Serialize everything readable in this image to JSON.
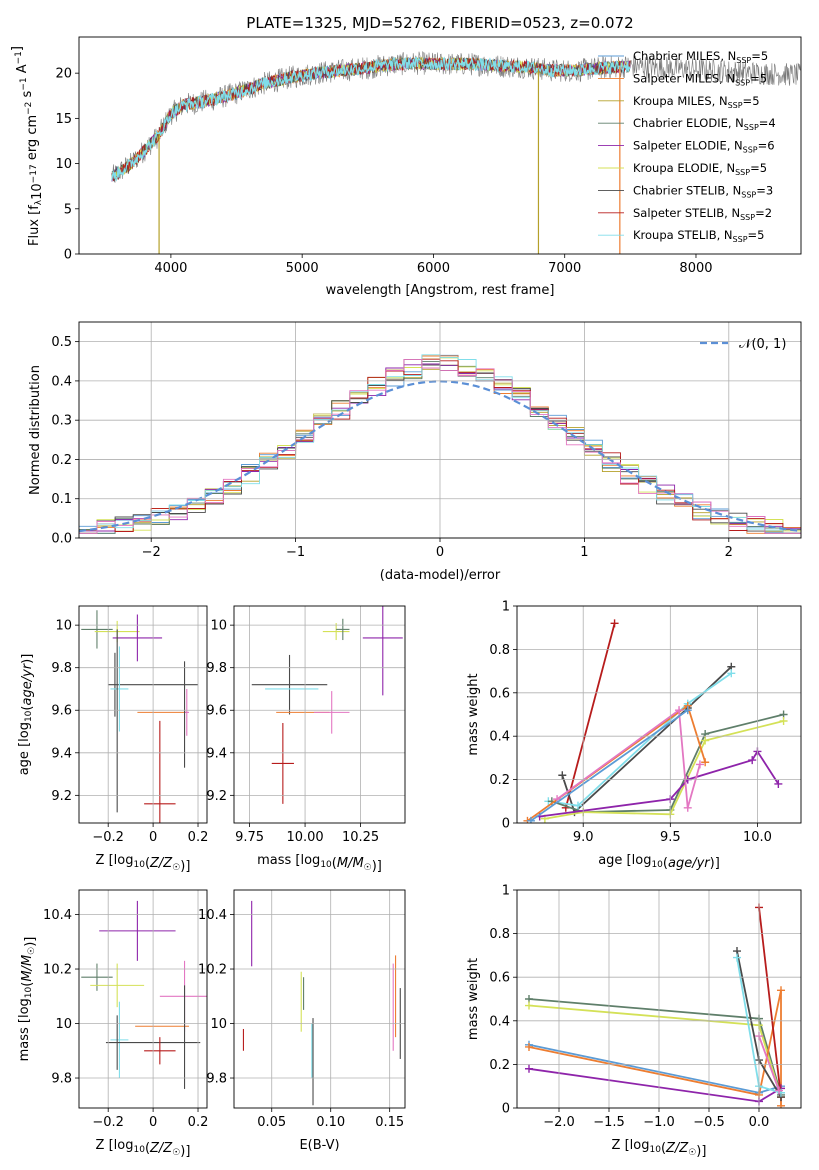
{
  "figure": {
    "title": "PLATE=1325, MJD=52762, FIBERID=0523, z=0.072"
  },
  "colors": {
    "Chabrier MILES": "#5b9bd5",
    "Salpeter MILES": "#ed7d31",
    "Kroupa MILES": "#b5a02a",
    "Chabrier ELODIE": "#5f7f6a",
    "Salpeter ELODIE": "#8e24aa",
    "Kroupa ELODIE": "#d4e157",
    "Chabrier STELIB": "#4a4a4a",
    "Salpeter STELIB": "#b71c1c",
    "Kroupa STELIB": "#80deea",
    "Pink": "#e377c2",
    "Gaussian": "#5b8fd6"
  },
  "chart_data": [
    {
      "id": "spectrum",
      "type": "line",
      "xlabel": "wavelength [Angstrom, rest frame]",
      "ylabel": "Flux [f_λ 10^-17 erg cm^-2 s^-1 A^-1]",
      "xlim": [
        3300,
        8800
      ],
      "ylim": [
        0,
        24
      ],
      "xticks": [
        4000,
        5000,
        6000,
        7000,
        8000
      ],
      "yticks": [
        0,
        5,
        10,
        15,
        20
      ],
      "grid": false,
      "legend_position": "top-right",
      "legend": [
        {
          "name": "Chabrier MILES",
          "nssp": "5"
        },
        {
          "name": "Salpeter MILES",
          "nssp": "5"
        },
        {
          "name": "Kroupa MILES",
          "nssp": "5"
        },
        {
          "name": "Chabrier ELODIE",
          "nssp": "4"
        },
        {
          "name": "Salpeter ELODIE",
          "nssp": "6"
        },
        {
          "name": "Kroupa ELODIE",
          "nssp": "5"
        },
        {
          "name": "Chabrier STELIB",
          "nssp": "3"
        },
        {
          "name": "Salpeter STELIB",
          "nssp": "2"
        },
        {
          "name": "Kroupa STELIB",
          "nssp": "5"
        }
      ],
      "continuum": {
        "x": [
          3550,
          3700,
          3900,
          4000,
          4100,
          4300,
          4500,
          4700,
          4900,
          5100,
          5300,
          5500,
          5700,
          5900,
          6100,
          6300,
          6500,
          6700,
          6900,
          7100,
          7300,
          7500
        ],
        "y": [
          8.5,
          10.0,
          13.0,
          15.5,
          16.5,
          17.0,
          17.8,
          18.8,
          19.5,
          20.0,
          20.3,
          20.6,
          21.0,
          21.1,
          21.0,
          21.0,
          20.8,
          20.7,
          20.3,
          20.3,
          20.6,
          20.8
        ]
      },
      "data_x_range": [
        3550,
        8800
      ],
      "model_x_range": [
        3550,
        7500
      ],
      "dips": [
        {
          "series": "Kroupa MILES",
          "x": 3910,
          "y": 0
        },
        {
          "series": "Kroupa MILES",
          "x": 6800,
          "y": 0
        },
        {
          "series": "Salpeter MILES",
          "x": 7420,
          "y": 0
        }
      ]
    },
    {
      "id": "residuals",
      "type": "histogram",
      "xlabel": "(data-model)/error",
      "ylabel": "Normed distribution",
      "xlim": [
        -2.5,
        2.5
      ],
      "ylim": [
        0,
        0.55
      ],
      "xticks": [
        -2,
        -1,
        0,
        1,
        2
      ],
      "yticks": [
        0.0,
        0.1,
        0.2,
        0.3,
        0.4,
        0.5
      ],
      "grid": true,
      "legend_position": "top-right",
      "reference_curve": {
        "label": "𝒩(0, 1)",
        "mean": 0,
        "sigma": 1
      },
      "bin_width": 0.125,
      "n_histograms": 10
    },
    {
      "id": "age_vs_Z",
      "type": "errorbar",
      "xlabel": "Z [log10(Z/Z☉)]",
      "ylabel": "age [log10(age/yr)]",
      "xlim": [
        -0.33,
        0.24
      ],
      "ylim": [
        9.07,
        10.09
      ],
      "xticks": [
        -0.2,
        0.0,
        0.2
      ],
      "yticks": [
        9.2,
        9.4,
        9.6,
        9.8,
        10.0
      ],
      "grid": true,
      "points": [
        {
          "series": "Chabrier ELODIE",
          "x": -0.25,
          "y": 9.98,
          "xerr": 0.07,
          "yerr": 0.09
        },
        {
          "series": "Kroupa ELODIE",
          "x": -0.16,
          "y": 9.97,
          "xerr": 0.1,
          "yerr": 0.05
        },
        {
          "series": "Salpeter ELODIE",
          "x": -0.07,
          "y": 9.94,
          "xerr": 0.11,
          "yerr": 0.11
        },
        {
          "series": "Chabrier STELIB",
          "x": 0.0,
          "y": 9.72,
          "xerr": 0.2,
          "yerr": 0.0
        },
        {
          "series": "Chabrier STELIB",
          "x": -0.17,
          "y": 9.72,
          "xerr": 0.0,
          "yerr": 0.15
        },
        {
          "series": "Kroupa STELIB",
          "x": -0.15,
          "y": 9.7,
          "xerr": 0.04,
          "yerr": 0.2
        },
        {
          "series": "Salpeter MILES",
          "x": 0.04,
          "y": 9.59,
          "xerr": 0.11,
          "yerr": 0.0
        },
        {
          "series": "Pink",
          "x": 0.15,
          "y": 9.59,
          "xerr": 0.01,
          "yerr": 0.11
        },
        {
          "series": "Chabrier STELIB",
          "x": -0.16,
          "y": 9.55,
          "xerr": 0.0,
          "yerr": 0.43
        },
        {
          "series": "Chabrier STELIB",
          "x": 0.14,
          "y": 9.58,
          "xerr": 0.0,
          "yerr": 0.25
        },
        {
          "series": "Salpeter STELIB",
          "x": 0.03,
          "y": 9.16,
          "xerr": 0.07,
          "yerr": 0.39
        }
      ]
    },
    {
      "id": "age_vs_mass",
      "type": "errorbar",
      "xlabel": "mass [log10(M/M☉)]",
      "ylabel": "",
      "xlim": [
        9.68,
        10.45
      ],
      "ylim": [
        9.07,
        10.09
      ],
      "xticks": [
        9.75,
        10.0,
        10.25
      ],
      "tick_labels": [
        "9.75",
        "10.00",
        "10.25"
      ],
      "yticks": [
        9.2,
        9.4,
        9.6,
        9.8,
        10.0
      ],
      "grid": true,
      "points": [
        {
          "series": "Salpeter ELODIE",
          "x": 10.35,
          "y": 9.94,
          "xerr": 0.09,
          "yerr": 0.27
        },
        {
          "series": "Kroupa ELODIE",
          "x": 10.14,
          "y": 9.97,
          "xerr": 0.06,
          "yerr": 0.04
        },
        {
          "series": "Chabrier ELODIE",
          "x": 10.17,
          "y": 9.98,
          "xerr": 0.03,
          "yerr": 0.05
        },
        {
          "series": "Chabrier STELIB",
          "x": 9.93,
          "y": 9.72,
          "xerr": 0.17,
          "yerr": 0.14
        },
        {
          "series": "Kroupa STELIB",
          "x": 9.94,
          "y": 9.7,
          "xerr": 0.12,
          "yerr": 0.0
        },
        {
          "series": "Salpeter MILES",
          "x": 9.99,
          "y": 9.59,
          "xerr": 0.12,
          "yerr": 0.0
        },
        {
          "series": "Pink",
          "x": 10.12,
          "y": 9.59,
          "xerr": 0.08,
          "yerr": 0.1
        },
        {
          "series": "Salpeter STELIB",
          "x": 9.9,
          "y": 9.35,
          "xerr": 0.05,
          "yerr": 0.19
        }
      ]
    },
    {
      "id": "weight_vs_age",
      "type": "line",
      "xlabel": "age [log10(age/yr)]",
      "ylabel": "mass weight",
      "xlim": [
        8.62,
        10.25
      ],
      "ylim": [
        0.0,
        1.0
      ],
      "xticks": [
        9.0,
        9.5,
        10.0
      ],
      "tick_labels": [
        "9.0",
        "9.5",
        "10.0"
      ],
      "yticks": [
        0.0,
        0.2,
        0.4,
        0.6,
        0.8,
        1.0
      ],
      "grid": true,
      "series": [
        {
          "name": "Salpeter STELIB",
          "x": [
            8.9,
            9.18
          ],
          "y": [
            0.07,
            0.92
          ]
        },
        {
          "name": "Chabrier STELIB",
          "x": [
            8.88,
            8.95,
            9.6,
            9.85
          ],
          "y": [
            0.22,
            0.05,
            0.53,
            0.72
          ]
        },
        {
          "name": "Kroupa STELIB",
          "x": [
            8.8,
            8.97,
            9.6,
            9.85
          ],
          "y": [
            0.1,
            0.08,
            0.55,
            0.69
          ]
        },
        {
          "name": "Chabrier ELODIE",
          "x": [
            8.82,
            9.0,
            9.5,
            9.7,
            10.15
          ],
          "y": [
            0.1,
            0.05,
            0.06,
            0.41,
            0.5
          ]
        },
        {
          "name": "Kroupa ELODIE",
          "x": [
            8.78,
            9.0,
            9.5,
            9.7,
            10.15
          ],
          "y": [
            0.02,
            0.05,
            0.04,
            0.38,
            0.47
          ]
        },
        {
          "name": "Salpeter ELODIE",
          "x": [
            8.75,
            9.5,
            9.6,
            9.97,
            10.0,
            10.12
          ],
          "y": [
            0.03,
            0.11,
            0.2,
            0.29,
            0.33,
            0.18
          ]
        },
        {
          "name": "Salpeter MILES",
          "x": [
            8.68,
            9.6,
            9.7
          ],
          "y": [
            0.01,
            0.54,
            0.28
          ]
        },
        {
          "name": "Pink",
          "x": [
            8.85,
            9.55,
            9.6,
            9.67
          ],
          "y": [
            0.11,
            0.52,
            0.07,
            0.27
          ]
        },
        {
          "name": "Chabrier MILES",
          "x": [
            8.7,
            9.6
          ],
          "y": [
            0.01,
            0.52
          ]
        }
      ]
    },
    {
      "id": "mass_vs_Z",
      "type": "errorbar",
      "xlabel": "Z [log10(Z/Z☉)]",
      "ylabel": "mass [log10(M/M☉)]",
      "xlim": [
        -0.33,
        0.24
      ],
      "ylim": [
        9.69,
        10.49
      ],
      "xticks": [
        -0.2,
        0.0,
        0.2
      ],
      "yticks": [
        9.8,
        10.0,
        10.2,
        10.4
      ],
      "grid": true,
      "points": [
        {
          "series": "Salpeter ELODIE",
          "x": -0.07,
          "y": 10.34,
          "xerr": 0.17,
          "yerr": 0.11
        },
        {
          "series": "Chabrier ELODIE",
          "x": -0.25,
          "y": 10.17,
          "xerr": 0.07,
          "yerr": 0.05
        },
        {
          "series": "Kroupa ELODIE",
          "x": -0.16,
          "y": 10.14,
          "xerr": 0.12,
          "yerr": 0.08
        },
        {
          "series": "Pink",
          "x": 0.14,
          "y": 10.1,
          "xerr": 0.11,
          "yerr": 0.13
        },
        {
          "series": "Salpeter MILES",
          "x": 0.04,
          "y": 9.99,
          "xerr": 0.12,
          "yerr": 0.0
        },
        {
          "series": "Kroupa STELIB",
          "x": -0.15,
          "y": 9.94,
          "xerr": 0.04,
          "yerr": 0.14
        },
        {
          "series": "Chabrier STELIB",
          "x": -0.0,
          "y": 9.93,
          "xerr": 0.21,
          "yerr": 0.0
        },
        {
          "series": "Chabrier STELIB",
          "x": -0.16,
          "y": 9.93,
          "xerr": 0.0,
          "yerr": 0.1
        },
        {
          "series": "Chabrier STELIB",
          "x": 0.14,
          "y": 9.95,
          "xerr": 0.0,
          "yerr": 0.19
        },
        {
          "series": "Salpeter STELIB",
          "x": 0.03,
          "y": 9.9,
          "xerr": 0.07,
          "yerr": 0.05
        }
      ]
    },
    {
      "id": "mass_vs_EBV",
      "type": "errorbar",
      "xlabel": "E(B-V)",
      "ylabel": "",
      "xlim": [
        0.018,
        0.163
      ],
      "ylim": [
        9.69,
        10.49
      ],
      "xticks": [
        0.05,
        0.1,
        0.15
      ],
      "tick_labels": [
        "0.05",
        "0.10",
        "0.15"
      ],
      "yticks": [
        9.8,
        10.0,
        10.2,
        10.4
      ],
      "grid": true,
      "points": [
        {
          "series": "Salpeter ELODIE",
          "x": 0.033,
          "y": 10.33,
          "xerr": 0.0,
          "yerr": 0.12
        },
        {
          "series": "Salpeter STELIB",
          "x": 0.026,
          "y": 9.94,
          "xerr": 0.0,
          "yerr": 0.04
        },
        {
          "series": "Kroupa ELODIE",
          "x": 0.075,
          "y": 10.08,
          "xerr": 0.0,
          "yerr": 0.11
        },
        {
          "series": "Chabrier ELODIE",
          "x": 0.077,
          "y": 10.11,
          "xerr": 0.0,
          "yerr": 0.06
        },
        {
          "series": "Kroupa STELIB",
          "x": 0.084,
          "y": 9.9,
          "xerr": 0.0,
          "yerr": 0.1
        },
        {
          "series": "Chabrier STELIB",
          "x": 0.085,
          "y": 9.86,
          "xerr": 0.0,
          "yerr": 0.16
        },
        {
          "series": "Pink",
          "x": 0.153,
          "y": 10.06,
          "xerr": 0.0,
          "yerr": 0.16
        },
        {
          "series": "Salpeter MILES",
          "x": 0.155,
          "y": 10.1,
          "xerr": 0.0,
          "yerr": 0.15
        },
        {
          "series": "Chabrier STELIB",
          "x": 0.159,
          "y": 10.0,
          "xerr": 0.0,
          "yerr": 0.13
        }
      ]
    },
    {
      "id": "weight_vs_Z",
      "type": "line",
      "xlabel": "Z [log10(Z/Z☉)]",
      "ylabel": "mass weight",
      "xlim": [
        -2.42,
        0.42
      ],
      "ylim": [
        0.0,
        1.0
      ],
      "xticks": [
        -2.0,
        -1.5,
        -1.0,
        -0.5,
        0.0
      ],
      "tick_labels": [
        "−2.0",
        "−1.5",
        "−1.0",
        "−0.5",
        "0.0"
      ],
      "yticks": [
        0.0,
        0.2,
        0.4,
        0.6,
        0.8,
        1.0
      ],
      "grid": true,
      "series": [
        {
          "name": "Chabrier ELODIE",
          "x": [
            -2.3,
            0.0,
            0.22
          ],
          "y": [
            0.5,
            0.41,
            0.06
          ]
        },
        {
          "name": "Kroupa ELODIE",
          "x": [
            -2.3,
            0.0,
            0.22
          ],
          "y": [
            0.47,
            0.38,
            0.05
          ]
        },
        {
          "name": "Chabrier MILES",
          "x": [
            -2.3,
            0.0,
            0.22
          ],
          "y": [
            0.29,
            0.07,
            0.1
          ]
        },
        {
          "name": "Salpeter MILES",
          "x": [
            -2.3,
            0.0,
            0.22,
            0.22
          ],
          "y": [
            0.28,
            0.06,
            0.54,
            0.01
          ]
        },
        {
          "name": "Salpeter ELODIE",
          "x": [
            -2.3,
            0.0,
            0.22
          ],
          "y": [
            0.18,
            0.03,
            0.09
          ]
        },
        {
          "name": "Salpeter STELIB",
          "x": [
            0.0,
            0.22
          ],
          "y": [
            0.92,
            0.05
          ]
        },
        {
          "name": "Chabrier STELIB",
          "x": [
            -0.22,
            0.0,
            0.22
          ],
          "y": [
            0.72,
            0.22,
            0.05
          ]
        },
        {
          "name": "Kroupa STELIB",
          "x": [
            -0.22,
            0.0,
            0.22
          ],
          "y": [
            0.69,
            0.1,
            0.07
          ]
        },
        {
          "name": "Pink",
          "x": [
            0.0,
            0.2
          ],
          "y": [
            0.33,
            0.08
          ]
        }
      ]
    }
  ]
}
